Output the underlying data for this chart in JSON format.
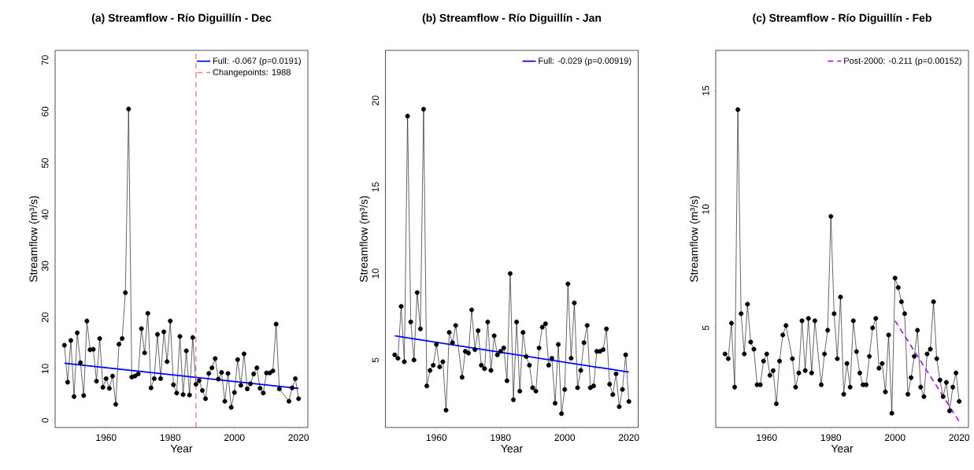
{
  "chart_data": [
    {
      "type": "line",
      "title": "(a) Streamflow - Río Diguillín - Dec",
      "xlabel": "Year",
      "ylabel": "Streamflow (m³/s)",
      "xlim": [
        1944.1,
        2022.9
      ],
      "ylim": [
        -1.4,
        71.9
      ],
      "xticks": [
        1960,
        1980,
        2000,
        2020
      ],
      "yticks": [
        0,
        10,
        20,
        30,
        40,
        50,
        60,
        70
      ],
      "legend": "top right",
      "series": [
        {
          "color": "#000000",
          "marker": "circle",
          "line_style": "solid",
          "x": [
            1947,
            1948,
            1949,
            1950,
            1951,
            1952,
            1953,
            1954,
            1955,
            1956,
            1957,
            1958,
            1959,
            1960,
            1961,
            1962,
            1963,
            1964,
            1965,
            1966,
            1967,
            1968,
            1969,
            1970,
            1971,
            1972,
            1973,
            1974,
            1975,
            1976,
            1977,
            1978,
            1979,
            1980,
            1981,
            1982,
            1983,
            1984,
            1985,
            1986,
            1987,
            1988,
            1989,
            1990,
            1991,
            1992,
            1993,
            1994,
            1995,
            1996,
            1997,
            1998,
            1999,
            2000,
            2001,
            2002,
            2003,
            2004,
            2005,
            2006,
            2007,
            2008,
            2009,
            2010,
            2011,
            2012,
            2013,
            2014,
            2017,
            2018,
            2019,
            2020
          ],
          "values": [
            14.6,
            7.4,
            15.5,
            4.6,
            17.0,
            11.2,
            4.8,
            19.3,
            13.7,
            13.8,
            7.6,
            15.9,
            6.4,
            8.1,
            6.2,
            8.6,
            3.1,
            14.8,
            15.9,
            24.8,
            60.5,
            8.4,
            8.6,
            9.0,
            17.8,
            13.1,
            20.8,
            6.3,
            8.1,
            16.7,
            8.1,
            17.2,
            11.4,
            19.3,
            6.9,
            5.3,
            16.3,
            5.0,
            13.5,
            4.9,
            16.1,
            7.0,
            7.7,
            5.8,
            4.2,
            9.1,
            10.2,
            12.0,
            8.0,
            9.3,
            3.7,
            9.1,
            2.5,
            5.4,
            11.8,
            6.8,
            12.9,
            6.1,
            7.1,
            9.0,
            10.2,
            6.2,
            5.3,
            9.2,
            9.2,
            9.6,
            18.7,
            6.1,
            3.7,
            6.3,
            8.1,
            4.2
          ]
        },
        {
          "type": "line",
          "name": "Full: -0.067 (p=0.0191)",
          "color": "#0000ff",
          "marker": "none",
          "line_style": "solid",
          "x": [
            1947,
            2020
          ],
          "values": [
            11.1,
            6.2
          ]
        }
      ],
      "ref_lines": [
        {
          "axis": "x",
          "value": 1988,
          "label": "Changepoints: 1988",
          "color": "#ff3333",
          "line_style": "dashed"
        }
      ]
    },
    {
      "type": "line",
      "title": "(b) Streamflow - Río Diguillín - Jan",
      "xlabel": "Year",
      "ylabel": "Streamflow (m³/s)",
      "xlim": [
        1944.1,
        2022.9
      ],
      "ylim": [
        1.1,
        22.9
      ],
      "xticks": [
        1960,
        1980,
        2000,
        2020
      ],
      "yticks": [
        5,
        10,
        15,
        20
      ],
      "legend": "top right",
      "series": [
        {
          "color": "#000000",
          "marker": "circle",
          "line_style": "solid",
          "x": [
            1947,
            1948,
            1949,
            1950,
            1951,
            1952,
            1953,
            1954,
            1955,
            1956,
            1957,
            1958,
            1959,
            1960,
            1961,
            1962,
            1963,
            1964,
            1965,
            1966,
            1968,
            1969,
            1970,
            1971,
            1972,
            1973,
            1974,
            1975,
            1976,
            1977,
            1978,
            1979,
            1980,
            1981,
            1982,
            1983,
            1984,
            1985,
            1986,
            1987,
            1988,
            1989,
            1990,
            1991,
            1992,
            1993,
            1994,
            1995,
            1996,
            1997,
            1998,
            1999,
            2000,
            2001,
            2002,
            2003,
            2004,
            2005,
            2006,
            2007,
            2008,
            2009,
            2010,
            2011,
            2012,
            2013,
            2014,
            2015,
            2016,
            2017,
            2018,
            2019,
            2020
          ],
          "values": [
            5.3,
            5.1,
            8.1,
            4.9,
            19.1,
            7.2,
            5.0,
            8.9,
            6.8,
            19.5,
            3.5,
            4.4,
            4.7,
            5.9,
            4.6,
            4.9,
            2.1,
            6.6,
            6.0,
            7.0,
            4.0,
            5.5,
            5.4,
            7.9,
            5.6,
            6.7,
            4.7,
            4.5,
            7.2,
            4.4,
            6.4,
            5.3,
            5.5,
            5.7,
            3.8,
            10.0,
            2.7,
            7.2,
            3.2,
            6.6,
            5.2,
            4.7,
            3.4,
            3.2,
            5.7,
            6.9,
            7.1,
            4.7,
            5.1,
            2.5,
            5.9,
            1.9,
            3.3,
            9.4,
            5.1,
            8.3,
            3.4,
            4.4,
            6.0,
            7.0,
            3.4,
            3.5,
            5.5,
            5.5,
            5.6,
            6.8,
            3.6,
            3.0,
            4.2,
            2.3,
            3.3,
            5.3,
            2.6
          ]
        },
        {
          "type": "line",
          "name": "Full: -0.029 (p=0.00919)",
          "color": "#0000ff",
          "marker": "none",
          "line_style": "solid",
          "x": [
            1947,
            2020
          ],
          "values": [
            6.4,
            4.3
          ]
        }
      ]
    },
    {
      "type": "line",
      "title": "(c) Streamflow - Río Diguillín - Feb",
      "xlabel": "Year",
      "ylabel": "Streamflow (m³/s)",
      "xlim": [
        1944.1,
        2022.9
      ],
      "ylim": [
        0.8,
        16.7
      ],
      "xticks": [
        1960,
        1980,
        2000,
        2020
      ],
      "yticks": [
        5,
        10,
        15
      ],
      "legend": "top right",
      "series": [
        {
          "color": "#000000",
          "marker": "circle",
          "line_style": "solid",
          "x": [
            1947,
            1948,
            1949,
            1950,
            1951,
            1952,
            1953,
            1954,
            1955,
            1956,
            1957,
            1958,
            1959,
            1960,
            1961,
            1962,
            1963,
            1964,
            1965,
            1966,
            1968,
            1969,
            1970,
            1971,
            1972,
            1973,
            1974,
            1975,
            1977,
            1978,
            1979,
            1980,
            1981,
            1982,
            1983,
            1984,
            1985,
            1986,
            1987,
            1988,
            1989,
            1990,
            1991,
            1992,
            1993,
            1994,
            1995,
            1996,
            1997,
            1998,
            1999,
            2000,
            2001,
            2002,
            2003,
            2004,
            2005,
            2006,
            2007,
            2008,
            2009,
            2010,
            2011,
            2012,
            2013,
            2014,
            2015,
            2016,
            2017,
            2018,
            2019,
            2020
          ],
          "values": [
            3.9,
            3.7,
            5.2,
            2.5,
            14.2,
            5.6,
            3.9,
            6.0,
            4.4,
            4.1,
            2.6,
            2.6,
            3.6,
            3.9,
            3.0,
            3.2,
            1.8,
            3.6,
            4.7,
            5.1,
            3.7,
            2.5,
            3.1,
            5.3,
            3.2,
            5.4,
            3.1,
            5.3,
            2.6,
            3.9,
            4.9,
            9.7,
            5.6,
            3.7,
            6.3,
            2.2,
            3.5,
            2.5,
            5.3,
            4.0,
            3.1,
            2.6,
            2.6,
            3.8,
            5.0,
            5.4,
            3.3,
            3.5,
            2.3,
            4.7,
            1.4,
            7.1,
            6.7,
            6.1,
            5.6,
            2.2,
            2.9,
            3.8,
            4.9,
            2.5,
            2.1,
            3.9,
            4.1,
            6.1,
            3.7,
            2.8,
            2.1,
            2.7,
            1.5,
            2.5,
            3.1,
            1.9
          ]
        },
        {
          "type": "line",
          "name": "Post-2000: -0.211 (p=0.00152)",
          "color": "#a020f0",
          "marker": "none",
          "line_style": "dashed",
          "x": [
            2000,
            2020
          ],
          "values": [
            5.3,
            1.05
          ]
        }
      ]
    }
  ]
}
